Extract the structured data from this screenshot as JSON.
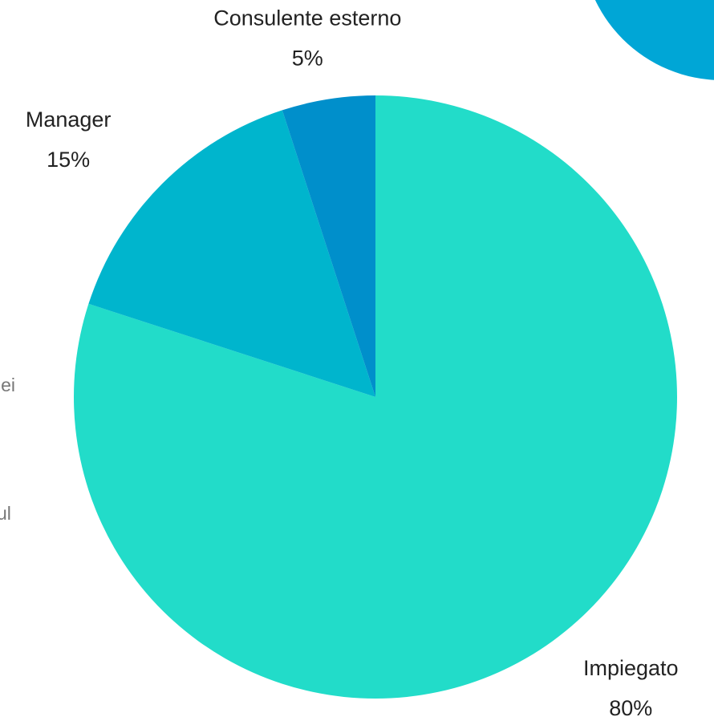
{
  "chart_data": {
    "type": "pie",
    "categories": [
      "Impiegato",
      "Manager",
      "Consulente esterno"
    ],
    "values": [
      80,
      15,
      5
    ],
    "value_labels": [
      "80%",
      "15%",
      "5%"
    ],
    "colors": [
      "#22dcc9",
      "#00b5cd",
      "#008fcb"
    ],
    "annotations": [
      "lei",
      "ul"
    ]
  }
}
